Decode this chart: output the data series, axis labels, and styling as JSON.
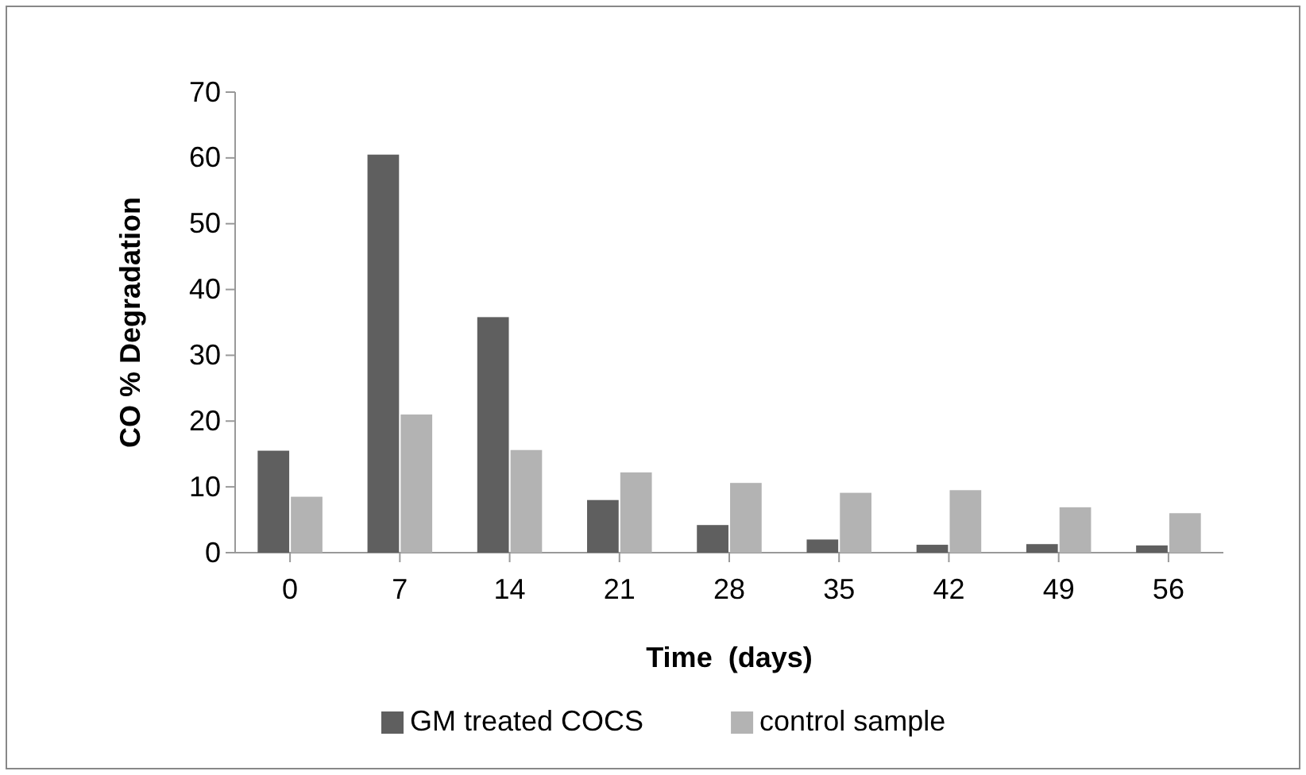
{
  "chart_data": {
    "type": "bar",
    "xlabel": "Time  (days)",
    "ylabel": "CO % Degradation",
    "categories": [
      "0",
      "7",
      "14",
      "21",
      "28",
      "35",
      "42",
      "49",
      "56"
    ],
    "series": [
      {
        "name": "GM treated COCS",
        "color": "#5f5f5f",
        "values": [
          15.5,
          60.5,
          35.8,
          8,
          4.2,
          2,
          1.2,
          1.3,
          1.1
        ]
      },
      {
        "name": "control sample",
        "color": "#b3b3b3",
        "values": [
          8.5,
          21,
          15.6,
          12.2,
          10.6,
          9.1,
          9.5,
          6.9,
          6
        ]
      }
    ],
    "ylim": [
      0,
      70
    ],
    "yticks": [
      0,
      10,
      20,
      30,
      40,
      50,
      60,
      70
    ],
    "grid": false,
    "legend": "bottom"
  }
}
